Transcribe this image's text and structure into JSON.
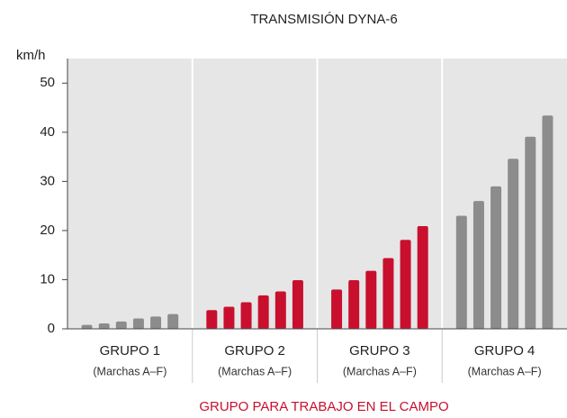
{
  "chart_data": {
    "type": "bar",
    "title": "TRANSMISIÓN DYNA-6",
    "y_label": "km/h",
    "x_label": "GRUPO PARA TRABAJO EN EL CAMPO",
    "ylim": [
      0,
      55
    ],
    "yticks": [
      0,
      10,
      20,
      30,
      40,
      50
    ],
    "groups": [
      {
        "name": "GRUPO 1",
        "subtitle": "(Marchas A–F)",
        "color": "#8c8c8c",
        "values": [
          0.8,
          1.1,
          1.5,
          2.1,
          2.5,
          3.0
        ]
      },
      {
        "name": "GRUPO 2",
        "subtitle": "(Marchas A–F)",
        "color": "#c8102e",
        "values": [
          3.8,
          4.5,
          5.4,
          6.8,
          7.6,
          9.9
        ]
      },
      {
        "name": "GRUPO 3",
        "subtitle": "(Marchas A–F)",
        "color": "#c8102e",
        "values": [
          8.0,
          9.9,
          11.8,
          14.4,
          18.1,
          20.9
        ]
      },
      {
        "name": "GRUPO 4",
        "subtitle": "(Marchas A–F)",
        "color": "#8c8c8c",
        "values": [
          23.0,
          26.0,
          29.0,
          34.6,
          39.1,
          43.4
        ]
      }
    ]
  }
}
